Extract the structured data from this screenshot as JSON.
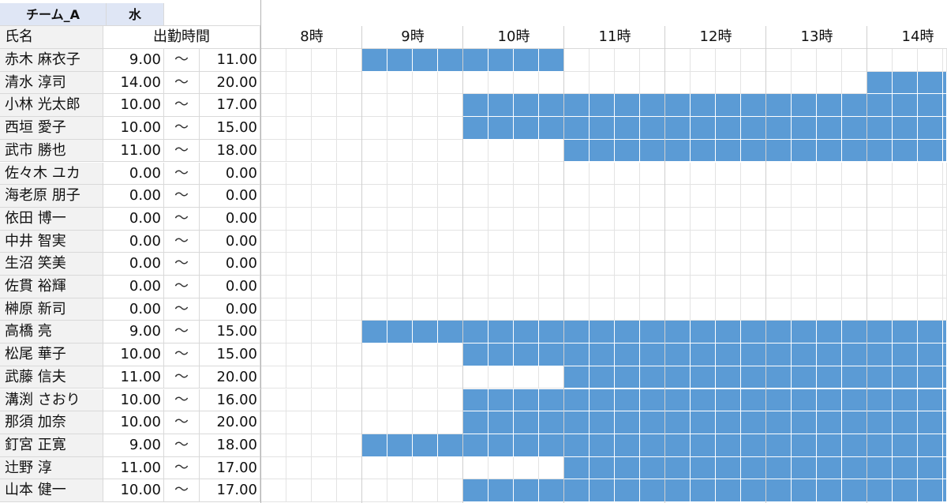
{
  "header": {
    "team": "チーム_A",
    "day": "水"
  },
  "columns": {
    "name": "氏名",
    "hours": "出勤時間"
  },
  "hours": [
    "8時",
    "9時",
    "10時",
    "11時",
    "12時",
    "13時",
    "14時"
  ],
  "timeline_start_hour": 8,
  "slots_per_hour": 4,
  "colors": {
    "bar": "#5b9bd5",
    "team_header": "#dfe6f5",
    "label_bg": "#f2f2f2"
  },
  "rows": [
    {
      "name": "赤木 麻衣子",
      "start": "9.00",
      "sep": "〜",
      "end": "11.00"
    },
    {
      "name": "清水 淳司",
      "start": "14.00",
      "sep": "〜",
      "end": "20.00"
    },
    {
      "name": "小林 光太郎",
      "start": "10.00",
      "sep": "〜",
      "end": "17.00"
    },
    {
      "name": "西垣 愛子",
      "start": "10.00",
      "sep": "〜",
      "end": "15.00"
    },
    {
      "name": "武市 勝也",
      "start": "11.00",
      "sep": "〜",
      "end": "18.00"
    },
    {
      "name": "佐々木 ユカ",
      "start": "0.00",
      "sep": "〜",
      "end": "0.00"
    },
    {
      "name": "海老原 朋子",
      "start": "0.00",
      "sep": "〜",
      "end": "0.00"
    },
    {
      "name": "依田 博一",
      "start": "0.00",
      "sep": "〜",
      "end": "0.00"
    },
    {
      "name": "中井 智実",
      "start": "0.00",
      "sep": "〜",
      "end": "0.00"
    },
    {
      "name": "生沼 笑美",
      "start": "0.00",
      "sep": "〜",
      "end": "0.00"
    },
    {
      "name": "佐貫 裕輝",
      "start": "0.00",
      "sep": "〜",
      "end": "0.00"
    },
    {
      "name": "榊原 新司",
      "start": "0.00",
      "sep": "〜",
      "end": "0.00"
    },
    {
      "name": "高橋 亮",
      "start": "9.00",
      "sep": "〜",
      "end": "15.00"
    },
    {
      "name": "松尾 華子",
      "start": "10.00",
      "sep": "〜",
      "end": "15.00"
    },
    {
      "name": "武藤 信夫",
      "start": "11.00",
      "sep": "〜",
      "end": "20.00"
    },
    {
      "name": "溝渕 さおり",
      "start": "10.00",
      "sep": "〜",
      "end": "16.00"
    },
    {
      "name": "那須 加奈",
      "start": "10.00",
      "sep": "〜",
      "end": "20.00"
    },
    {
      "name": "釘宮 正寛",
      "start": "9.00",
      "sep": "〜",
      "end": "18.00"
    },
    {
      "name": "辻野 淳",
      "start": "11.00",
      "sep": "〜",
      "end": "17.00"
    },
    {
      "name": "山本 健一",
      "start": "10.00",
      "sep": "〜",
      "end": "17.00"
    }
  ]
}
